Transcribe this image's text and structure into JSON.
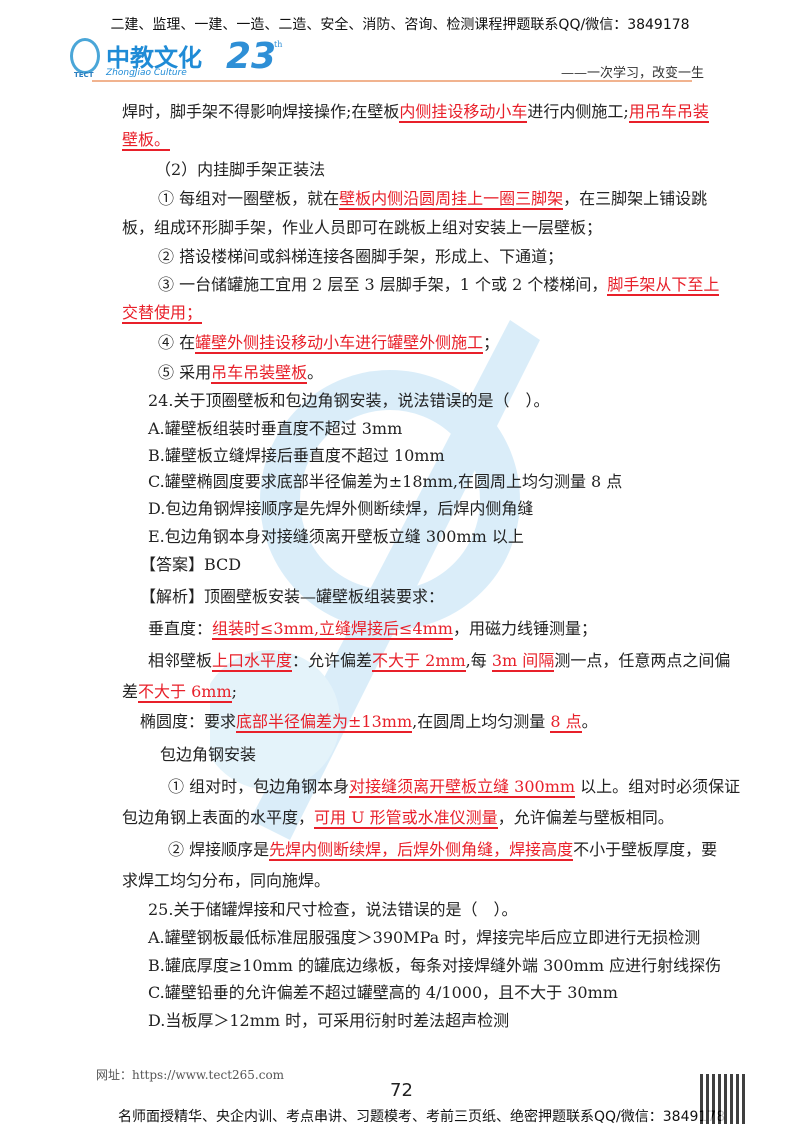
{
  "header": {
    "banner": "二建、监理、一建、一造、二造、安全、消防、咨询、检测课程押题联系QQ/微信：3849178",
    "logo_cn": "中教文化",
    "logo_en": "ZhongJiao Culture",
    "logo_abbr": "TECT",
    "logo_anniversary": "23",
    "logo_suffix": "th",
    "slogan": "——一次学习，改变一生",
    "accent_color": "#f1b38f"
  },
  "body": {
    "mark_color": "#e8202a",
    "lines": [
      [
        {
          "t": "焊时，脚手架不得影响焊接操作;在壁板"
        },
        {
          "t": "内侧挂设移动小车",
          "m": 1
        },
        {
          "t": "进行内侧施工;"
        },
        {
          "t": "用吊车吊装",
          "m": 1
        }
      ],
      [
        {
          "t": "壁板。",
          "m": 1
        }
      ],
      [
        {
          "t": "（2）内挂脚手架正装法"
        }
      ],
      [
        {
          "t": "① 每组对一圈壁板，就在"
        },
        {
          "t": "壁板内侧沿圆周挂上一圈三脚架",
          "m": 1
        },
        {
          "t": "，在三脚架上铺设跳"
        }
      ],
      [
        {
          "t": "板，组成环形脚手架，作业人员即可在跳板上组对安装上一层壁板；"
        }
      ],
      [
        {
          "t": "② 搭设楼梯间或斜梯连接各圈脚手架，形成上、下通道；"
        }
      ],
      [
        {
          "t": "③ 一台储罐施工宜用 2 层至 3 层脚手架，1 个或 2 个楼梯间，"
        },
        {
          "t": "脚手架从下至上",
          "m": 1
        }
      ],
      [
        {
          "t": "交替使用；",
          "m": 1
        }
      ],
      [
        {
          "t": "④ 在"
        },
        {
          "t": "罐壁外侧挂设移动小车进行罐壁外侧施工",
          "m": 1
        },
        {
          "t": "；"
        }
      ],
      [
        {
          "t": "⑤ 采用"
        },
        {
          "t": "吊车吊装壁板",
          "m": 1
        },
        {
          "t": "。"
        }
      ],
      [
        {
          "t": "24.关于顶圈壁板和包边角钢安装，说法错误的是（　）。"
        }
      ],
      [
        {
          "t": "A.罐壁板组装时垂直度不超过 3mm"
        }
      ],
      [
        {
          "t": "B.罐壁板立缝焊接后垂直度不超过 10mm"
        }
      ],
      [
        {
          "t": "C.罐壁椭圆度要求底部半径偏差为±18mm,在圆周上均匀测量 8 点"
        }
      ],
      [
        {
          "t": "D.包边角钢焊接顺序是先焊外侧断续焊，后焊内侧角缝"
        }
      ],
      [
        {
          "t": "E.包边角钢本身对接缝须离开壁板立缝 300mm 以上"
        }
      ],
      [
        {
          "t": "【答案】BCD"
        }
      ],
      [
        {
          "t": "【解析】顶圈壁板安装—罐壁板组装要求："
        }
      ],
      [
        {
          "t": "垂直度："
        },
        {
          "t": "组装时≤3mm,立缝焊接后≤4mm",
          "m": 1
        },
        {
          "t": "，用磁力线锤测量；"
        }
      ],
      [
        {
          "t": "相邻壁板"
        },
        {
          "t": "上口水平度",
          "m": 1
        },
        {
          "t": "：允许偏差"
        },
        {
          "t": "不大于 2mm",
          "m": 1
        },
        {
          "t": ",每 "
        },
        {
          "t": "3m 间隔",
          "m": 1
        },
        {
          "t": "测一点，任意两点之间偏"
        }
      ],
      [
        {
          "t": "差"
        },
        {
          "t": "不大于 6mm",
          "m": 1
        },
        {
          "t": ";"
        }
      ],
      [
        {
          "t": "椭圆度：要求"
        },
        {
          "t": "底部半径偏差为±13mm",
          "m": 1
        },
        {
          "t": ",在圆周上均匀测量 "
        },
        {
          "t": "8 点",
          "m": 1
        },
        {
          "t": "。"
        }
      ],
      [
        {
          "t": "包边角钢安装"
        }
      ],
      [
        {
          "t": "① 组对时，包边角钢本身"
        },
        {
          "t": "对接缝须离开壁板立缝 300mm",
          "m": 1
        },
        {
          "t": " 以上。组对时必须保证"
        }
      ],
      [
        {
          "t": "包边角钢上表面的水平度，"
        },
        {
          "t": "可用 U 形管或水准仪测量",
          "m": 1
        },
        {
          "t": "，允许偏差与壁板相同。"
        }
      ],
      [
        {
          "t": "② 焊接顺序是"
        },
        {
          "t": "先焊内侧断续焊，后焊外侧角缝，焊接高度",
          "m": 1
        },
        {
          "t": "不小于壁板厚度，要"
        }
      ],
      [
        {
          "t": "求焊工均匀分布，同向施焊。"
        }
      ],
      [
        {
          "t": "25.关于储罐焊接和尺寸检查，说法错误的是（　）。"
        }
      ],
      [
        {
          "t": "A.罐壁钢板最低标准屈服强度＞390MPa 时，焊接完毕后应立即进行无损检测"
        }
      ],
      [
        {
          "t": "B.罐底厚度≥10mm 的罐底边缘板，每条对接焊缝外端 300mm 应进行射线探伤"
        }
      ],
      [
        {
          "t": "C.罐壁铅垂的允许偏差不超过罐壁高的 4/1000，且不大于 30mm"
        }
      ],
      [
        {
          "t": "D.当板厚＞12mm 时，可采用衍射时差法超声检测"
        }
      ]
    ]
  },
  "footer": {
    "page_number": "72",
    "url": "网址：https://www.tect265.com",
    "text": "名师面授精华、央企内训、考点串讲、习题模考、考前三页纸、绝密押题联系QQ/微信：3849178"
  }
}
